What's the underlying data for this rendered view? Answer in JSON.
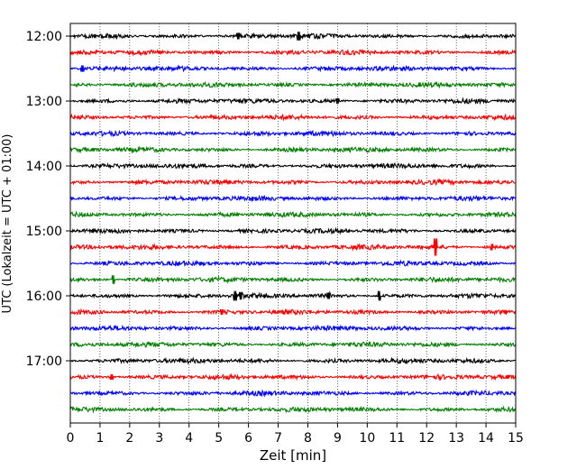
{
  "chart_data": {
    "type": "line",
    "xlabel": "Zeit  [min]",
    "ylabel": "UTC (Lokalzeit = UTC + 01:00)",
    "xlim": [
      0,
      15
    ],
    "x_ticks": [
      0,
      1,
      2,
      3,
      4,
      5,
      6,
      7,
      8,
      9,
      10,
      11,
      12,
      13,
      14,
      15
    ],
    "x_tick_labels": [
      "0",
      "1",
      "2",
      "3",
      "4",
      "5",
      "6",
      "7",
      "8",
      "9",
      "10",
      "11",
      "12",
      "13",
      "14",
      "15"
    ],
    "y_tick_labels": [
      "12:00",
      "13:00",
      "14:00",
      "15:00",
      "16:00",
      "17:00"
    ],
    "y_tick_rows": [
      0,
      4,
      8,
      12,
      16,
      20
    ],
    "grid": "vertical dotted",
    "row_interval_minutes": 15,
    "row_count": 24,
    "color_cycle": [
      "#000000",
      "#ff0000",
      "#0000ff",
      "#008000"
    ],
    "spike_events": [
      {
        "row": 0,
        "x": 7.7,
        "amplitude": 1.6
      },
      {
        "row": 0,
        "x": 5.65,
        "amplitude": 1.2
      },
      {
        "row": 2,
        "x": 0.4,
        "amplitude": 1.2
      },
      {
        "row": 4,
        "x": 9.0,
        "amplitude": 1.0
      },
      {
        "row": 13,
        "x": 12.3,
        "amplitude": 3.2
      },
      {
        "row": 13,
        "x": 14.2,
        "amplitude": 1.2
      },
      {
        "row": 15,
        "x": 1.45,
        "amplitude": 1.6
      },
      {
        "row": 16,
        "x": 5.55,
        "amplitude": 1.8
      },
      {
        "row": 16,
        "x": 5.75,
        "amplitude": 1.4
      },
      {
        "row": 16,
        "x": 10.4,
        "amplitude": 1.8
      },
      {
        "row": 16,
        "x": 8.7,
        "amplitude": 1.2
      },
      {
        "row": 17,
        "x": 5.1,
        "amplitude": 1.0
      },
      {
        "row": 21,
        "x": 1.4,
        "amplitude": 1.0
      }
    ]
  }
}
